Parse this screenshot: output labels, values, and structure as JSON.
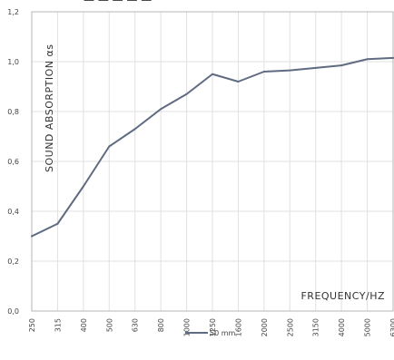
{
  "chart_data": {
    "type": "line",
    "ylabel": "SOUND ABSORPTION αs",
    "xlabel": "FREQUENCY/HZ",
    "categories": [
      "250",
      "315",
      "400",
      "500",
      "630",
      "800",
      "1000",
      "1250",
      "1600",
      "2000",
      "2500",
      "3150",
      "4000",
      "5000",
      "6300"
    ],
    "ylim": [
      0,
      1.2
    ],
    "yticks": [
      "0,0",
      "0,2",
      "0,4",
      "0,6",
      "0,8",
      "1,0",
      "1,2"
    ],
    "grid": true,
    "legend_position": "bottom-center",
    "series": [
      {
        "name": "50 mm",
        "color": "#5f6b80",
        "values": [
          0.3,
          0.35,
          0.5,
          0.66,
          0.73,
          0.81,
          0.87,
          0.95,
          0.92,
          0.96,
          0.965,
          0.975,
          0.985,
          1.01,
          1.015
        ]
      }
    ]
  }
}
